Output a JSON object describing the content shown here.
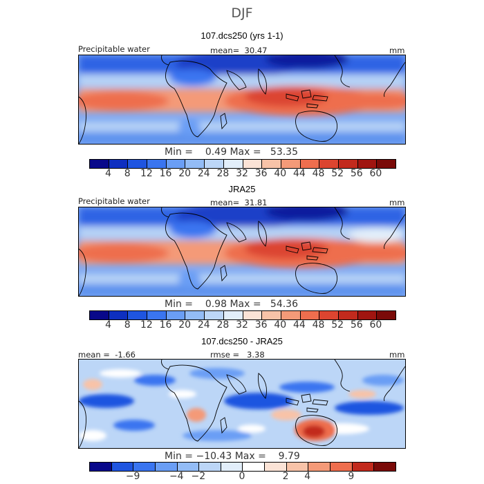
{
  "figure": {
    "title": "DJF",
    "panels": [
      {
        "subtitle": "107.dcs250 (yrs 1-1)",
        "label_left": "Precipitable water",
        "label_mid": "mean=  30.47",
        "label_right": "mm",
        "minmax": "Min =    0.49 Max =   53.35"
      },
      {
        "subtitle": "JRA25",
        "label_left": "Precipitable water",
        "label_mid": "mean=  31.81",
        "label_right": "mm",
        "minmax": "Min =    0.98 Max =   54.36"
      },
      {
        "subtitle": "107.dcs250 - JRA25",
        "label_left": "mean =  -1.66",
        "label_mid": "rmse =   3.38",
        "label_right": "mm",
        "minmax": "Min = −10.43 Max =    9.79"
      }
    ]
  },
  "chart_data": [
    {
      "type": "heatmap",
      "title": "107.dcs250 (yrs 1-1)",
      "variable": "Precipitable water",
      "units": "mm",
      "mean": 30.47,
      "min": 0.49,
      "max": 53.35,
      "levels": [
        4,
        8,
        12,
        16,
        20,
        24,
        28,
        32,
        36,
        40,
        44,
        48,
        52,
        56,
        60
      ],
      "colors": [
        "#08088a",
        "#0e2fc0",
        "#1f55e0",
        "#3a75f0",
        "#6a9ef5",
        "#93bcf6",
        "#bcd6f7",
        "#e2eefa",
        "#fbe3d6",
        "#f8c3a8",
        "#f49a78",
        "#ee6e4e",
        "#dc4530",
        "#c22a1d",
        "#a01510",
        "#7a0a08"
      ]
    },
    {
      "type": "heatmap",
      "title": "JRA25",
      "variable": "Precipitable water",
      "units": "mm",
      "mean": 31.81,
      "min": 0.98,
      "max": 54.36,
      "levels": [
        4,
        8,
        12,
        16,
        20,
        24,
        28,
        32,
        36,
        40,
        44,
        48,
        52,
        56,
        60
      ],
      "colors": [
        "#08088a",
        "#0e2fc0",
        "#1f55e0",
        "#3a75f0",
        "#6a9ef5",
        "#93bcf6",
        "#bcd6f7",
        "#e2eefa",
        "#fbe3d6",
        "#f8c3a8",
        "#f49a78",
        "#ee6e4e",
        "#dc4530",
        "#c22a1d",
        "#a01510",
        "#7a0a08"
      ]
    },
    {
      "type": "heatmap",
      "title": "107.dcs250 - JRA25",
      "units": "mm",
      "mean": -1.66,
      "rmse": 3.38,
      "min": -10.43,
      "max": 9.79,
      "levels": [
        -9,
        -4,
        -2,
        0,
        2,
        4,
        9
      ],
      "colors": [
        "#08088a",
        "#1f55e0",
        "#3a75f0",
        "#6a9ef5",
        "#93bcf6",
        "#bcd6f7",
        "#e2eefa",
        "#ffffff",
        "#fbe3d6",
        "#f8c3a8",
        "#f49a78",
        "#ee6e4e",
        "#c22a1d",
        "#7a0a08"
      ]
    }
  ]
}
